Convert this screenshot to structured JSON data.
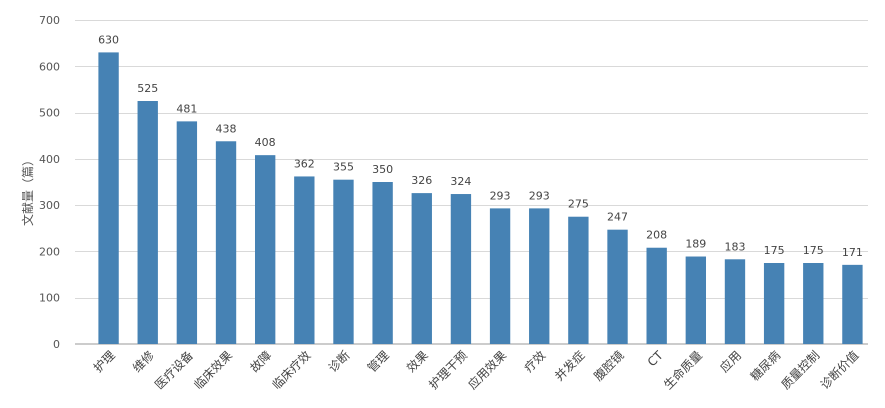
{
  "chart_data": {
    "type": "bar",
    "title": "",
    "xlabel": "",
    "ylabel": "文献量（篇）",
    "ylim": [
      0,
      700
    ],
    "yticks": [
      0,
      100,
      200,
      300,
      400,
      500,
      600,
      700
    ],
    "grid": true,
    "bar_color": "#4682b4",
    "categories": [
      "护理",
      "维修",
      "医疗设备",
      "临床效果",
      "故障",
      "临床疗效",
      "诊断",
      "管理",
      "效果",
      "护理干预",
      "应用效果",
      "疗效",
      "并发症",
      "腹腔镜",
      "CT",
      "生命质量",
      "应用",
      "糖尿病",
      "质量控制",
      "诊断价值"
    ],
    "values": [
      630,
      525,
      481,
      438,
      408,
      362,
      355,
      350,
      326,
      324,
      293,
      293,
      275,
      247,
      208,
      189,
      183,
      175,
      175,
      171
    ]
  }
}
